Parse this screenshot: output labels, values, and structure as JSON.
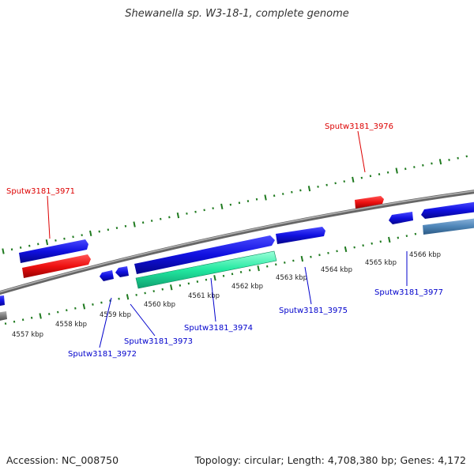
{
  "title": "Shewanella sp. W3-18-1, complete genome",
  "footer": {
    "accession": "Accession: NC_008750",
    "summary": "Topology: circular; Length: 4,708,380 bp; Genes: 4,172"
  },
  "colors": {
    "forward_gene": "#1010e0",
    "reverse_gene_red": "#ee1111",
    "highlight_gene": "#22e8a0",
    "steelblue_gene": "#4f86b8",
    "backbone": "#8a8a8a",
    "tick": "#1f7a1f",
    "label_red": "#dd0000",
    "label_blue": "#0000cc"
  },
  "ruler_labels": [
    "4557 kbp",
    "4558 kbp",
    "4559 kbp",
    "4560 kbp",
    "4561 kbp",
    "4562 kbp",
    "4563 kbp",
    "4564 kbp",
    "4565 kbp",
    "4566 kbp"
  ],
  "gene_labels": [
    {
      "name": "Sputw3181_3971",
      "color": "red"
    },
    {
      "name": "Sputw3181_3976",
      "color": "red"
    },
    {
      "name": "Sputw3181_3972",
      "color": "blue"
    },
    {
      "name": "Sputw3181_3973",
      "color": "blue"
    },
    {
      "name": "Sputw3181_3974",
      "color": "blue"
    },
    {
      "name": "Sputw3181_3975",
      "color": "blue"
    },
    {
      "name": "Sputw3181_3977",
      "color": "blue"
    }
  ]
}
